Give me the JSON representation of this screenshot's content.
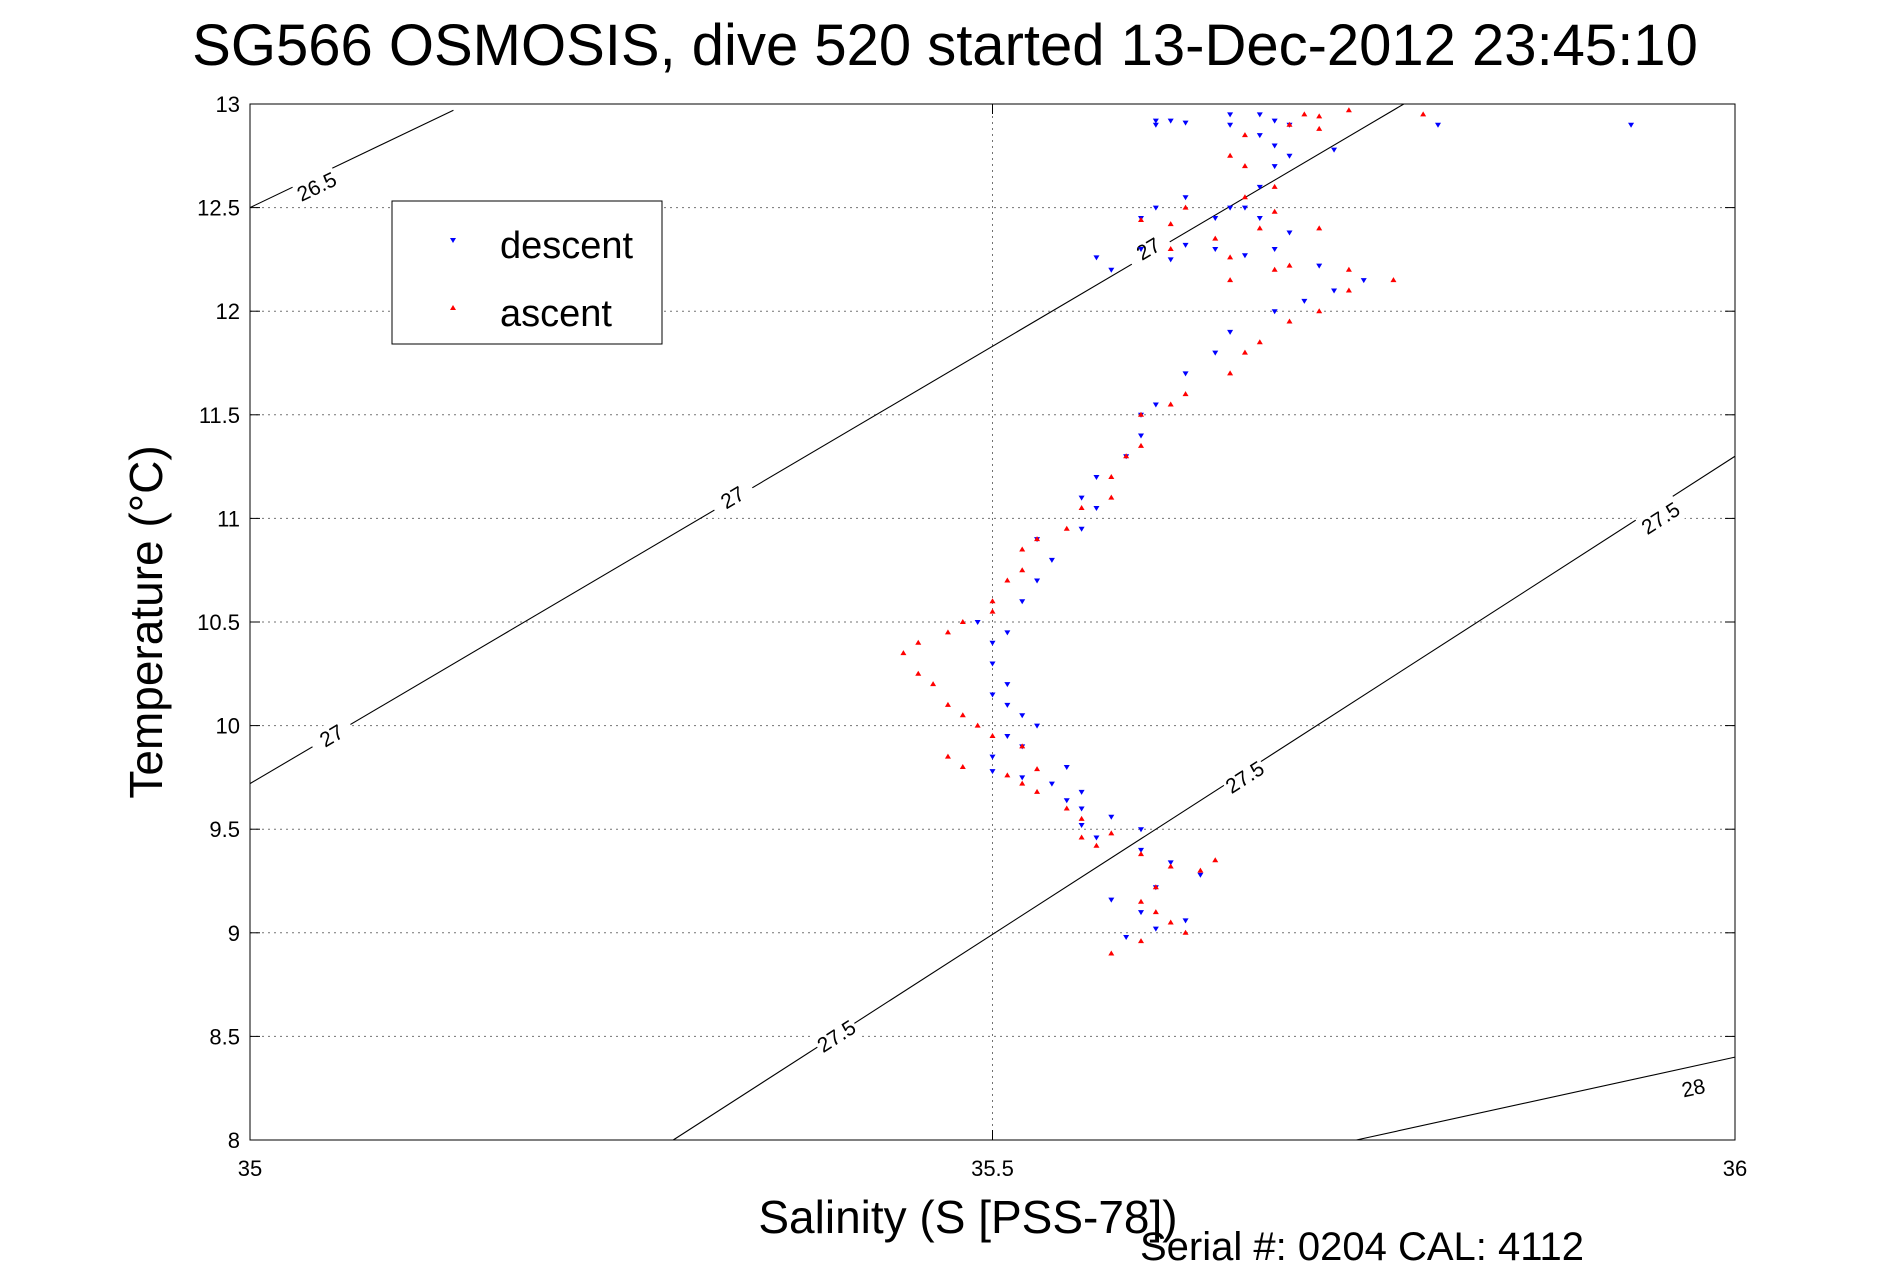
{
  "chart_data": {
    "type": "scatter",
    "title": "SG566 OSMOSIS, dive 520 started 13-Dec-2012 23:45:10",
    "xlabel": "Salinity (S [PSS-78])",
    "ylabel": "Temperature (°C)",
    "xlim": [
      35,
      36
    ],
    "ylim": [
      8,
      13
    ],
    "xticks": [
      "35",
      "35.5",
      "36"
    ],
    "yticks": [
      "8",
      "8.5",
      "9",
      "9.5",
      "10",
      "10.5",
      "11",
      "11.5",
      "12",
      "12.5",
      "13"
    ],
    "grid": true,
    "legend_position": "top-left",
    "footer": "Serial #: 0204  CAL: 4112",
    "series": [
      {
        "name": "descent",
        "color": "#0000ff",
        "marker": "triangle-down",
        "points": [
          [
            35.59,
            8.98
          ],
          [
            35.61,
            9.02
          ],
          [
            35.63,
            9.06
          ],
          [
            35.6,
            9.1
          ],
          [
            35.58,
            9.16
          ],
          [
            35.61,
            9.22
          ],
          [
            35.64,
            9.28
          ],
          [
            35.62,
            9.34
          ],
          [
            35.6,
            9.4
          ],
          [
            35.57,
            9.46
          ],
          [
            35.6,
            9.5
          ],
          [
            35.56,
            9.52
          ],
          [
            35.58,
            9.56
          ],
          [
            35.56,
            9.6
          ],
          [
            35.55,
            9.64
          ],
          [
            35.56,
            9.68
          ],
          [
            35.54,
            9.72
          ],
          [
            35.52,
            9.75
          ],
          [
            35.5,
            9.78
          ],
          [
            35.55,
            9.8
          ],
          [
            35.5,
            9.85
          ],
          [
            35.52,
            9.9
          ],
          [
            35.51,
            9.95
          ],
          [
            35.53,
            10.0
          ],
          [
            35.52,
            10.05
          ],
          [
            35.51,
            10.1
          ],
          [
            35.5,
            10.15
          ],
          [
            35.51,
            10.2
          ],
          [
            35.5,
            10.3
          ],
          [
            35.5,
            10.4
          ],
          [
            35.51,
            10.45
          ],
          [
            35.49,
            10.5
          ],
          [
            35.52,
            10.6
          ],
          [
            35.53,
            10.7
          ],
          [
            35.54,
            10.8
          ],
          [
            35.53,
            10.9
          ],
          [
            35.56,
            10.95
          ],
          [
            35.57,
            11.05
          ],
          [
            35.56,
            11.1
          ],
          [
            35.57,
            11.2
          ],
          [
            35.59,
            11.3
          ],
          [
            35.6,
            11.4
          ],
          [
            35.6,
            11.5
          ],
          [
            35.61,
            11.55
          ],
          [
            35.63,
            11.7
          ],
          [
            35.65,
            11.8
          ],
          [
            35.66,
            11.9
          ],
          [
            35.69,
            12.0
          ],
          [
            35.71,
            12.05
          ],
          [
            35.73,
            12.1
          ],
          [
            35.75,
            12.15
          ],
          [
            35.72,
            12.22
          ],
          [
            35.67,
            12.27
          ],
          [
            35.63,
            12.32
          ],
          [
            35.6,
            12.3
          ],
          [
            35.57,
            12.26
          ],
          [
            35.58,
            12.2
          ],
          [
            35.62,
            12.25
          ],
          [
            35.65,
            12.3
          ],
          [
            35.69,
            12.3
          ],
          [
            35.7,
            12.38
          ],
          [
            35.68,
            12.45
          ],
          [
            35.66,
            12.5
          ],
          [
            35.63,
            12.55
          ],
          [
            35.61,
            12.5
          ],
          [
            35.6,
            12.45
          ],
          [
            35.65,
            12.45
          ],
          [
            35.67,
            12.5
          ],
          [
            35.68,
            12.6
          ],
          [
            35.69,
            12.7
          ],
          [
            35.7,
            12.75
          ],
          [
            35.69,
            12.8
          ],
          [
            35.68,
            12.85
          ],
          [
            35.7,
            12.9
          ],
          [
            35.69,
            12.92
          ],
          [
            35.61,
            12.92
          ],
          [
            35.62,
            12.92
          ],
          [
            35.63,
            12.91
          ],
          [
            35.61,
            12.9
          ],
          [
            35.68,
            12.95
          ],
          [
            35.66,
            12.9
          ],
          [
            35.66,
            12.95
          ],
          [
            35.73,
            12.78
          ],
          [
            35.8,
            12.9
          ],
          [
            35.93,
            12.9
          ]
        ]
      },
      {
        "name": "ascent",
        "color": "#ff0000",
        "marker": "triangle-up",
        "points": [
          [
            35.58,
            8.9
          ],
          [
            35.6,
            8.96
          ],
          [
            35.63,
            9.0
          ],
          [
            35.62,
            9.05
          ],
          [
            35.61,
            9.1
          ],
          [
            35.6,
            9.15
          ],
          [
            35.61,
            9.22
          ],
          [
            35.64,
            9.3
          ],
          [
            35.65,
            9.35
          ],
          [
            35.62,
            9.32
          ],
          [
            35.6,
            9.38
          ],
          [
            35.57,
            9.42
          ],
          [
            35.56,
            9.46
          ],
          [
            35.58,
            9.48
          ],
          [
            35.56,
            9.55
          ],
          [
            35.55,
            9.6
          ],
          [
            35.53,
            9.68
          ],
          [
            35.52,
            9.72
          ],
          [
            35.51,
            9.76
          ],
          [
            35.53,
            9.79
          ],
          [
            35.48,
            9.8
          ],
          [
            35.47,
            9.85
          ],
          [
            35.52,
            9.9
          ],
          [
            35.5,
            9.95
          ],
          [
            35.49,
            10.0
          ],
          [
            35.48,
            10.05
          ],
          [
            35.47,
            10.1
          ],
          [
            35.46,
            10.2
          ],
          [
            35.45,
            10.25
          ],
          [
            35.44,
            10.35
          ],
          [
            35.45,
            10.4
          ],
          [
            35.47,
            10.45
          ],
          [
            35.48,
            10.5
          ],
          [
            35.5,
            10.55
          ],
          [
            35.5,
            10.6
          ],
          [
            35.51,
            10.7
          ],
          [
            35.52,
            10.75
          ],
          [
            35.52,
            10.85
          ],
          [
            35.53,
            10.9
          ],
          [
            35.55,
            10.95
          ],
          [
            35.56,
            11.05
          ],
          [
            35.58,
            11.1
          ],
          [
            35.58,
            11.2
          ],
          [
            35.59,
            11.3
          ],
          [
            35.6,
            11.35
          ],
          [
            35.6,
            11.5
          ],
          [
            35.62,
            11.55
          ],
          [
            35.63,
            11.6
          ],
          [
            35.66,
            11.7
          ],
          [
            35.67,
            11.8
          ],
          [
            35.68,
            11.85
          ],
          [
            35.7,
            11.95
          ],
          [
            35.72,
            12.0
          ],
          [
            35.74,
            12.1
          ],
          [
            35.77,
            12.15
          ],
          [
            35.74,
            12.2
          ],
          [
            35.7,
            12.22
          ],
          [
            35.66,
            12.26
          ],
          [
            35.62,
            12.3
          ],
          [
            35.65,
            12.35
          ],
          [
            35.68,
            12.4
          ],
          [
            35.72,
            12.4
          ],
          [
            35.69,
            12.48
          ],
          [
            35.63,
            12.5
          ],
          [
            35.6,
            12.44
          ],
          [
            35.62,
            12.42
          ],
          [
            35.67,
            12.55
          ],
          [
            35.69,
            12.6
          ],
          [
            35.67,
            12.7
          ],
          [
            35.66,
            12.75
          ],
          [
            35.67,
            12.85
          ],
          [
            35.7,
            12.9
          ],
          [
            35.72,
            12.94
          ],
          [
            35.74,
            12.97
          ],
          [
            35.71,
            12.95
          ],
          [
            35.79,
            12.95
          ],
          [
            35.72,
            12.88
          ],
          [
            35.69,
            12.2
          ],
          [
            35.66,
            12.15
          ]
        ]
      }
    ],
    "contours": [
      {
        "label": "26.5",
        "points": [
          [
            35.0,
            12.5
          ],
          [
            35.137,
            12.97
          ]
        ],
        "labels_at": [
          [
            35.045,
            12.6,
            "26.5"
          ]
        ]
      },
      {
        "label": "27",
        "points": [
          [
            35.0,
            9.72
          ],
          [
            35.777,
            13.0
          ]
        ],
        "labels_at": [
          [
            35.055,
            9.95,
            "27"
          ],
          [
            35.325,
            11.1,
            "27"
          ],
          [
            35.605,
            12.3,
            "27"
          ]
        ]
      },
      {
        "label": "27.5",
        "points": [
          [
            35.285,
            8.0
          ],
          [
            36.0,
            11.3
          ]
        ],
        "labels_at": [
          [
            35.395,
            8.5,
            "27.5"
          ],
          [
            35.67,
            9.75,
            "27.5"
          ],
          [
            35.95,
            11.0,
            "27.5"
          ]
        ]
      },
      {
        "label": "28",
        "points": [
          [
            35.745,
            8.0
          ],
          [
            36.0,
            8.4
          ]
        ],
        "labels_at": [
          [
            35.972,
            8.25,
            "28"
          ]
        ]
      }
    ]
  }
}
